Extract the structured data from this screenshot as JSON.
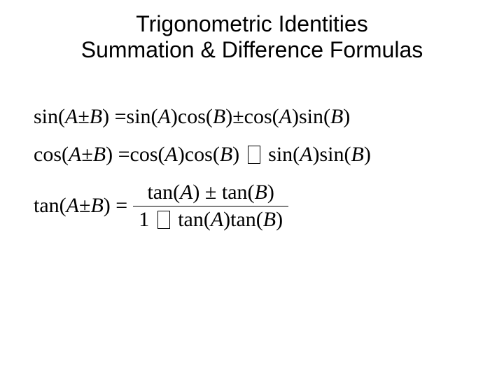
{
  "title": {
    "line1": "Trigonometric Identities",
    "line2": "Summation & Difference Formulas"
  },
  "formulas": {
    "sin": {
      "lhs_func": "sin(",
      "lhs_arg1": "A",
      "lhs_op": " ± ",
      "lhs_arg2": "B",
      "lhs_close": ") = ",
      "r1_f": "sin(",
      "r1_a": "A",
      "r1_c": ")",
      "r2_f": "cos(",
      "r2_a": "B",
      "r2_c": ")",
      "mid_op": " ± ",
      "r3_f": "cos(",
      "r3_a": "A",
      "r3_c": ")",
      "r4_f": "sin(",
      "r4_a": "B",
      "r4_c": ")"
    },
    "cos": {
      "lhs_func": "cos(",
      "lhs_arg1": "A",
      "lhs_op": " ± ",
      "lhs_arg2": "B",
      "lhs_close": ") = ",
      "r1_f": "cos(",
      "r1_a": "A",
      "r1_c": ")",
      "r2_f": "cos(",
      "r2_a": "B",
      "r2_c": ")",
      "r3_f": "sin(",
      "r3_a": "A",
      "r3_c": ")",
      "r4_f": "sin(",
      "r4_a": "B",
      "r4_c": ")"
    },
    "tan": {
      "lhs_func": "tan(",
      "lhs_arg1": "A",
      "lhs_op": " ± ",
      "lhs_arg2": "B",
      "lhs_close": ") = ",
      "num_1f": "tan(",
      "num_1a": "A",
      "num_1c": ")",
      "num_op": " ± ",
      "num_2f": "tan(",
      "num_2a": "B",
      "num_2c": ")",
      "den_lead": "1",
      "den_1f": "tan(",
      "den_1a": "A",
      "den_1c": ")",
      "den_2f": "tan(",
      "den_2a": "B",
      "den_2c": ")"
    }
  }
}
